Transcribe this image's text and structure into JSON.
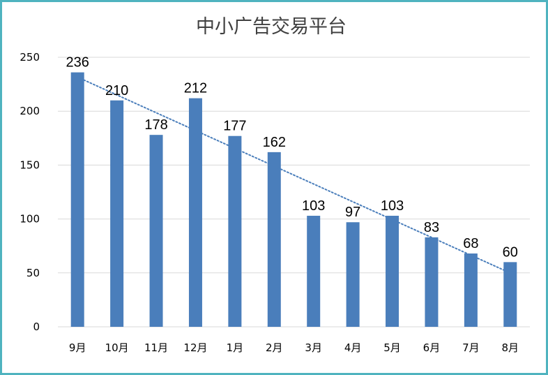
{
  "chart_data": {
    "type": "bar",
    "title": "中小广告交易平台",
    "xlabel": "",
    "ylabel": "",
    "categories": [
      "9月",
      "10月",
      "11月",
      "12月",
      "1月",
      "2月",
      "3月",
      "4月",
      "5月",
      "6月",
      "7月",
      "8月"
    ],
    "values": [
      236,
      210,
      178,
      212,
      177,
      162,
      103,
      97,
      103,
      83,
      68,
      60
    ],
    "data_labels": [
      "236",
      "210",
      "178",
      "212",
      "177",
      "162",
      "103",
      "97",
      "103",
      "83",
      "68",
      "60"
    ],
    "ylim": [
      0,
      250
    ],
    "y_ticks": [
      "0",
      "50",
      "100",
      "150",
      "200",
      "250"
    ],
    "grid": true,
    "legend": "none",
    "trendline": "linear, dotted",
    "colors": {
      "bar": "#4a7ebb",
      "trendline": "#4a7ebb",
      "grid": "#d9d9d9",
      "border": "#4fb3bf"
    }
  }
}
